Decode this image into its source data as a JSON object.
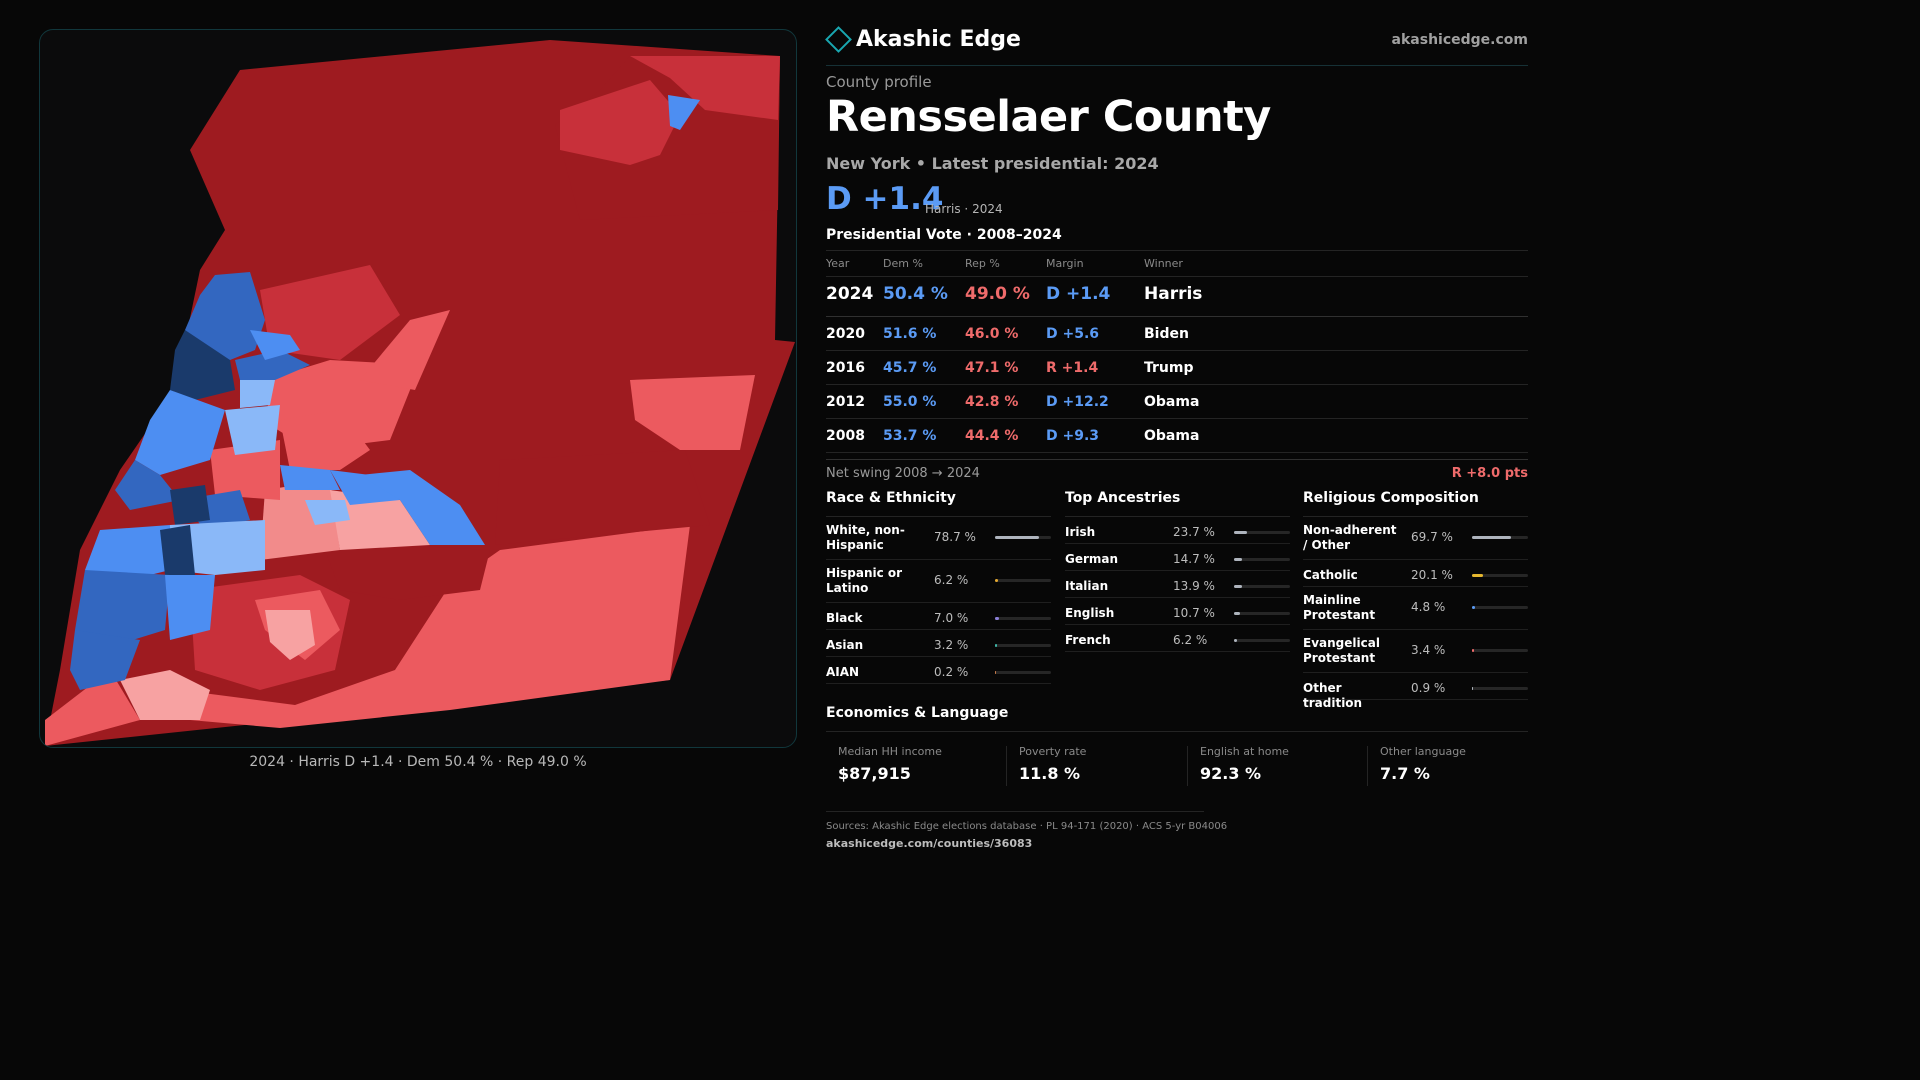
{
  "brand": {
    "name": "Akashic Edge",
    "site": "akashicedge.com",
    "accent": "#19a7b0"
  },
  "profile": {
    "eyebrow": "County profile",
    "county": "Rensselaer County",
    "subline": "New York  • Latest presidential: 2024",
    "margin": "D +1.4",
    "margin_note": "Harris · 2024"
  },
  "vote": {
    "title": "Presidential Vote · 2008–2024",
    "headers": [
      "Year",
      "Dem %",
      "Rep %",
      "Margin",
      "Winner"
    ],
    "rows": [
      {
        "year": "2024",
        "dem": "50.4 %",
        "rep": "49.0 %",
        "margin": "D +1.4",
        "party": "dem",
        "winner": "Harris"
      },
      {
        "year": "2020",
        "dem": "51.6 %",
        "rep": "46.0 %",
        "margin": "D +5.6",
        "party": "dem",
        "winner": "Biden"
      },
      {
        "year": "2016",
        "dem": "45.7 %",
        "rep": "47.1 %",
        "margin": "R +1.4",
        "party": "rep",
        "winner": "Trump"
      },
      {
        "year": "2012",
        "dem": "55.0 %",
        "rep": "42.8 %",
        "margin": "D +12.2",
        "party": "dem",
        "winner": "Obama"
      },
      {
        "year": "2008",
        "dem": "53.7 %",
        "rep": "44.4 %",
        "margin": "D +9.3",
        "party": "dem",
        "winner": "Obama"
      }
    ],
    "swing_label": "Net swing 2008 → 2024",
    "swing_value": "R +8.0 pts"
  },
  "race": {
    "title": "Race & Ethnicity",
    "items": [
      {
        "label": "White, non-Hispanic",
        "pct": "78.7 %",
        "value": 0.787,
        "color": "#aeb4bd"
      },
      {
        "label": "Hispanic or Latino",
        "pct": "6.2 %",
        "value": 0.062,
        "color": "#e6a92f"
      },
      {
        "label": "Black",
        "pct": "7.0 %",
        "value": 0.07,
        "color": "#8b7fd8"
      },
      {
        "label": "Asian",
        "pct": "3.2 %",
        "value": 0.032,
        "color": "#3fb6a8"
      },
      {
        "label": "AIAN",
        "pct": "0.2 %",
        "value": 0.002,
        "color": "#c77a4a"
      }
    ]
  },
  "ancestry": {
    "title": "Top Ancestries",
    "items": [
      {
        "label": "Irish",
        "pct": "23.7 %",
        "value": 0.237,
        "color": "#aeb4bd"
      },
      {
        "label": "German",
        "pct": "14.7 %",
        "value": 0.147,
        "color": "#aeb4bd"
      },
      {
        "label": "Italian",
        "pct": "13.9 %",
        "value": 0.139,
        "color": "#aeb4bd"
      },
      {
        "label": "English",
        "pct": "10.7 %",
        "value": 0.107,
        "color": "#aeb4bd"
      },
      {
        "label": "French",
        "pct": "6.2 %",
        "value": 0.062,
        "color": "#aeb4bd"
      }
    ]
  },
  "religion": {
    "title": "Religious Composition",
    "items": [
      {
        "label": "Non-adherent / Other",
        "pct": "69.7 %",
        "value": 0.697,
        "color": "#aeb4bd"
      },
      {
        "label": "Catholic",
        "pct": "20.1 %",
        "value": 0.201,
        "color": "#e6b82f"
      },
      {
        "label": "Mainline Protestant",
        "pct": "4.8 %",
        "value": 0.048,
        "color": "#5b9bf5"
      },
      {
        "label": "Evangelical Protestant",
        "pct": "3.4 %",
        "value": 0.034,
        "color": "#ef6b6b"
      },
      {
        "label": "Other tradition",
        "pct": "0.9 %",
        "value": 0.009,
        "color": "#aeb4bd"
      }
    ]
  },
  "economics": {
    "title": "Economics & Language",
    "items": [
      {
        "label": "Median HH income",
        "value": "$87,915"
      },
      {
        "label": "Poverty rate",
        "value": "11.8 %"
      },
      {
        "label": "English at home",
        "value": "92.3 %"
      },
      {
        "label": "Other language",
        "value": "7.7 %"
      }
    ]
  },
  "sources": {
    "line": "Sources: Akashic Edge elections database · PL 94-171 (2020) · ACS 5-yr B04006",
    "url": "akashicedge.com/counties/36083"
  },
  "map": {
    "caption": "2024 · Harris D +1.4 · Dem 50.4 % · Rep 49.0 %",
    "colors": {
      "rep_strong": "#9e1b20",
      "rep_mid": "#c8303a",
      "rep_light": "#ec5a5f",
      "rep_pale": "#f7a2a2",
      "dem_strong": "#1a3a6b",
      "dem_mid": "#3367c0",
      "dem_light": "#4d8ef2",
      "dem_pale": "#8ab8f8"
    }
  }
}
